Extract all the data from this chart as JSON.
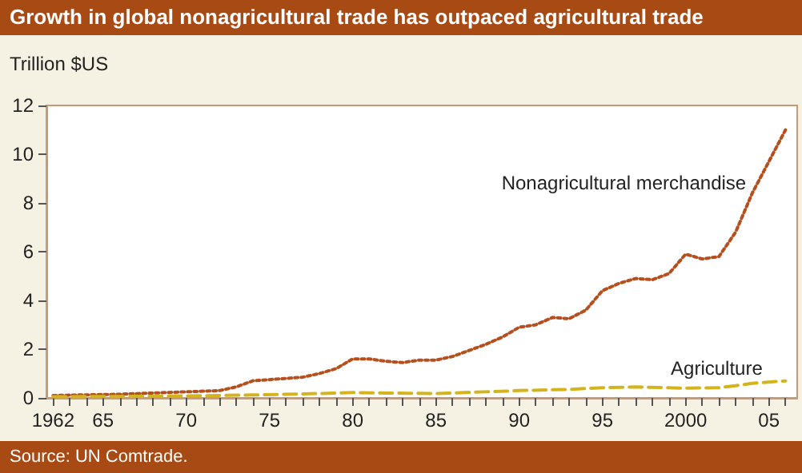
{
  "chart_data": {
    "type": "line",
    "title": "Growth in global nonagricultural trade has outpaced agricultural trade",
    "ylabel": "Trillion $US",
    "annotations": [
      "Source: UN Comtrade."
    ],
    "xlim": [
      1961.6,
      2006.7
    ],
    "ylim": [
      0,
      12
    ],
    "yticks": [
      0,
      2,
      4,
      6,
      8,
      10,
      12
    ],
    "xticks": [
      {
        "value": 1962,
        "label": "1962"
      },
      {
        "value": 1963,
        "label": null
      },
      {
        "value": 1964,
        "label": null
      },
      {
        "value": 1965,
        "label": "65"
      },
      {
        "value": 1966,
        "label": null
      },
      {
        "value": 1967,
        "label": null
      },
      {
        "value": 1968,
        "label": null
      },
      {
        "value": 1969,
        "label": null
      },
      {
        "value": 1970,
        "label": "70"
      },
      {
        "value": 1971,
        "label": null
      },
      {
        "value": 1972,
        "label": null
      },
      {
        "value": 1973,
        "label": null
      },
      {
        "value": 1974,
        "label": null
      },
      {
        "value": 1975,
        "label": "75"
      },
      {
        "value": 1976,
        "label": null
      },
      {
        "value": 1977,
        "label": null
      },
      {
        "value": 1978,
        "label": null
      },
      {
        "value": 1979,
        "label": null
      },
      {
        "value": 1980,
        "label": "80"
      },
      {
        "value": 1981,
        "label": null
      },
      {
        "value": 1982,
        "label": null
      },
      {
        "value": 1983,
        "label": null
      },
      {
        "value": 1984,
        "label": null
      },
      {
        "value": 1985,
        "label": "85"
      },
      {
        "value": 1986,
        "label": null
      },
      {
        "value": 1987,
        "label": null
      },
      {
        "value": 1988,
        "label": null
      },
      {
        "value": 1989,
        "label": null
      },
      {
        "value": 1990,
        "label": "90"
      },
      {
        "value": 1991,
        "label": null
      },
      {
        "value": 1992,
        "label": null
      },
      {
        "value": 1993,
        "label": null
      },
      {
        "value": 1994,
        "label": null
      },
      {
        "value": 1995,
        "label": "95"
      },
      {
        "value": 1996,
        "label": null
      },
      {
        "value": 1997,
        "label": null
      },
      {
        "value": 1998,
        "label": null
      },
      {
        "value": 1999,
        "label": null
      },
      {
        "value": 2000,
        "label": "2000"
      },
      {
        "value": 2001,
        "label": null
      },
      {
        "value": 2002,
        "label": null
      },
      {
        "value": 2003,
        "label": null
      },
      {
        "value": 2004,
        "label": null
      },
      {
        "value": 2005,
        "label": "05"
      },
      {
        "value": 2006,
        "label": null
      }
    ],
    "grid": false,
    "legend": false,
    "marker": "none",
    "series": [
      {
        "name": "Nonagricultural merchandise",
        "color": "#b5501e",
        "line_style": "dotted",
        "x": [
          1962,
          1966,
          1970,
          1972,
          1973,
          1974,
          1976,
          1977,
          1978,
          1979,
          1980,
          1981,
          1982,
          1983,
          1984,
          1985,
          1986,
          1987,
          1988,
          1989,
          1990,
          1991,
          1992,
          1993,
          1994,
          1995,
          1996,
          1997,
          1998,
          1999,
          2000,
          2001,
          2002,
          2003,
          2004,
          2005,
          2006
        ],
        "values": [
          0.1,
          0.15,
          0.25,
          0.3,
          0.45,
          0.7,
          0.8,
          0.85,
          1.0,
          1.2,
          1.6,
          1.6,
          1.5,
          1.45,
          1.55,
          1.55,
          1.7,
          1.95,
          2.2,
          2.5,
          2.9,
          3.0,
          3.3,
          3.25,
          3.6,
          4.4,
          4.7,
          4.9,
          4.85,
          5.1,
          5.9,
          5.7,
          5.8,
          6.8,
          8.4,
          9.7,
          11.0
        ]
      },
      {
        "name": "Agriculture",
        "color": "#d4b41c",
        "line_style": "dashed",
        "x": [
          1962,
          1966,
          1970,
          1974,
          1978,
          1980,
          1982,
          1985,
          1988,
          1990,
          1993,
          1995,
          1997,
          2000,
          2002,
          2003,
          2004,
          2006
        ],
        "values": [
          0.05,
          0.06,
          0.08,
          0.12,
          0.18,
          0.22,
          0.2,
          0.18,
          0.25,
          0.3,
          0.35,
          0.42,
          0.45,
          0.4,
          0.42,
          0.5,
          0.6,
          0.7
        ]
      }
    ]
  }
}
